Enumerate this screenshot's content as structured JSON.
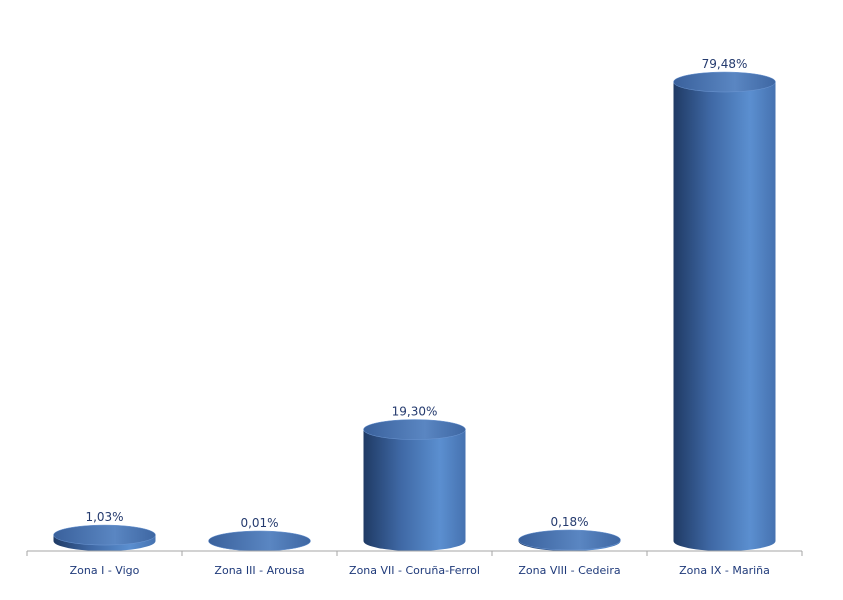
{
  "chart_data": {
    "type": "bar",
    "style": "3d-cylinder",
    "categories": [
      "Zona I - Vigo",
      "Zona III - Arousa",
      "Zona VII - Coruña-Ferrol",
      "Zona VIII - Cedeira",
      "Zona IX - Mariña"
    ],
    "values": [
      1.03,
      0.01,
      19.3,
      0.18,
      79.48
    ],
    "data_labels": [
      "1,03%",
      "0,01%",
      "19,30%",
      "0,18%",
      "79,48%"
    ],
    "title": "",
    "xlabel": "",
    "ylabel": "",
    "ylim": [
      0,
      80
    ],
    "grid": false,
    "legend": "none",
    "colors": {
      "bar": "#4f81bd",
      "bar_dark": "#1f3a64",
      "axis": "#a6a6a6",
      "label": "#1f3a7a"
    }
  }
}
